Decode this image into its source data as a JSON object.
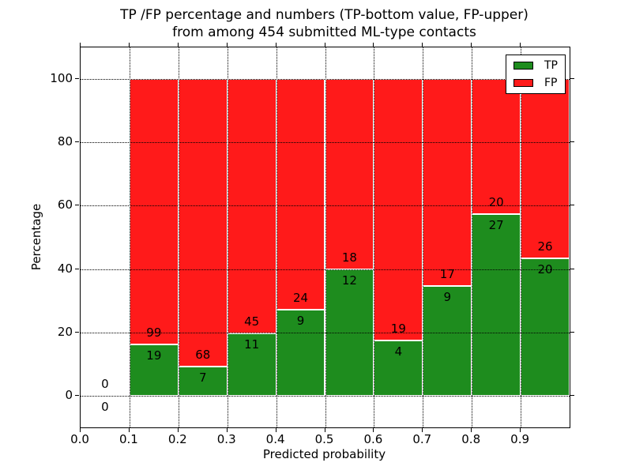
{
  "figure": {
    "title_line1": "TP /FP percentage and numbers (TP-bottom value, FP-upper)",
    "title_line2": "from among 454 submitted ML-type contacts"
  },
  "axes": {
    "xlabel": "Predicted probability",
    "ylabel": "Percentage",
    "x_tick_labels": [
      "0.0",
      "0.1",
      "0.2",
      "0.3",
      "0.4",
      "0.5",
      "0.6",
      "0.7",
      "0.8",
      "0.9"
    ],
    "y_tick_labels": [
      "0",
      "20",
      "40",
      "60",
      "80",
      "100"
    ]
  },
  "legend": {
    "items": [
      {
        "label": "TP",
        "color": "#1e8c1e"
      },
      {
        "label": "FP",
        "color": "#ff1a1a"
      }
    ]
  },
  "chart_data": {
    "type": "bar",
    "stacked": true,
    "normalized_to_percent": 100,
    "title": "TP /FP percentage and numbers (TP-bottom value, FP-upper)\nfrom among 454 submitted ML-type contacts",
    "xlabel": "Predicted probability",
    "ylabel": "Percentage",
    "xlim": [
      0.0,
      1.0
    ],
    "ylim": [
      -10,
      110
    ],
    "x_ticks": [
      0.0,
      0.1,
      0.2,
      0.3,
      0.4,
      0.5,
      0.6,
      0.7,
      0.8,
      0.9
    ],
    "y_ticks": [
      0,
      20,
      40,
      60,
      80,
      100
    ],
    "grid": true,
    "legend_position": "upper right",
    "bin_edges": [
      0.0,
      0.1,
      0.2,
      0.3,
      0.4,
      0.5,
      0.6,
      0.7,
      0.8,
      0.9,
      1.0
    ],
    "total_contacts": 454,
    "series": [
      {
        "name": "TP",
        "color": "#1e8c1e",
        "counts": [
          0,
          19,
          7,
          11,
          9,
          12,
          4,
          9,
          27,
          20
        ]
      },
      {
        "name": "FP",
        "color": "#ff1a1a",
        "counts": [
          0,
          99,
          68,
          45,
          24,
          18,
          19,
          17,
          20,
          26
        ]
      }
    ],
    "tp_percent_by_bin": [
      null,
      16.1,
      9.33,
      19.64,
      27.27,
      40.0,
      17.39,
      34.62,
      57.45,
      43.48
    ],
    "annotation_note": "FP count printed above the TP/FP boundary, TP count printed below it"
  }
}
